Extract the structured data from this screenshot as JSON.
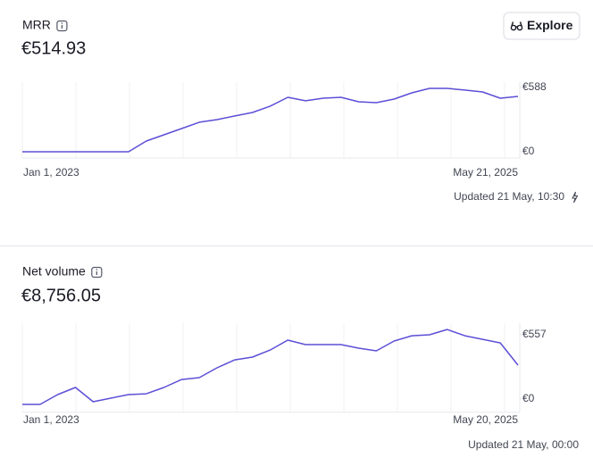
{
  "button": "Explore",
  "chart_data": [
    {
      "type": "line",
      "title": "MRR",
      "subtitle": "€514.93",
      "color": "#5b4fd6",
      "categories": [
        "Jan 1, 2023",
        null,
        null,
        null,
        null,
        null,
        null,
        null,
        null,
        null,
        null,
        null,
        null,
        null,
        null,
        null,
        null,
        null,
        null,
        null,
        null,
        null,
        null,
        null,
        null,
        null,
        null,
        null,
        "May 21, 2025"
      ],
      "values": [
        0,
        0,
        0,
        0,
        0,
        0,
        0,
        98,
        155,
        212,
        270,
        294,
        327,
        359,
        417,
        498,
        466,
        490,
        498,
        457,
        449,
        482,
        539,
        580,
        580,
        564,
        547,
        490,
        506
      ],
      "ylim": [
        0,
        600
      ],
      "yticks": [
        {
          "value": 588,
          "label": "€588"
        },
        {
          "value": 0,
          "label": "€0"
        }
      ],
      "note": "Updated 21 May, 10:30"
    },
    {
      "type": "line",
      "title": "Net volume",
      "subtitle": "€8,756.05",
      "color": "#5b4fd6",
      "categories": [
        "Jan 1, 2023",
        null,
        null,
        null,
        null,
        null,
        null,
        null,
        null,
        null,
        null,
        null,
        null,
        null,
        null,
        null,
        null,
        null,
        null,
        null,
        null,
        null,
        null,
        null,
        null,
        null,
        null,
        null,
        "May 20, 2025"
      ],
      "values": [
        -46,
        -46,
        39,
        101,
        -23,
        8,
        39,
        46,
        101,
        170,
        186,
        271,
        340,
        364,
        425,
        511,
        472,
        472,
        472,
        441,
        418,
        503,
        549,
        557,
        603,
        549,
        518,
        487,
        294
      ],
      "ylim": [
        -60,
        620
      ],
      "yticks": [
        {
          "value": 557,
          "label": "€557"
        },
        {
          "value": 0,
          "label": "€0"
        }
      ],
      "note": "Updated 21 May, 00:00"
    }
  ]
}
